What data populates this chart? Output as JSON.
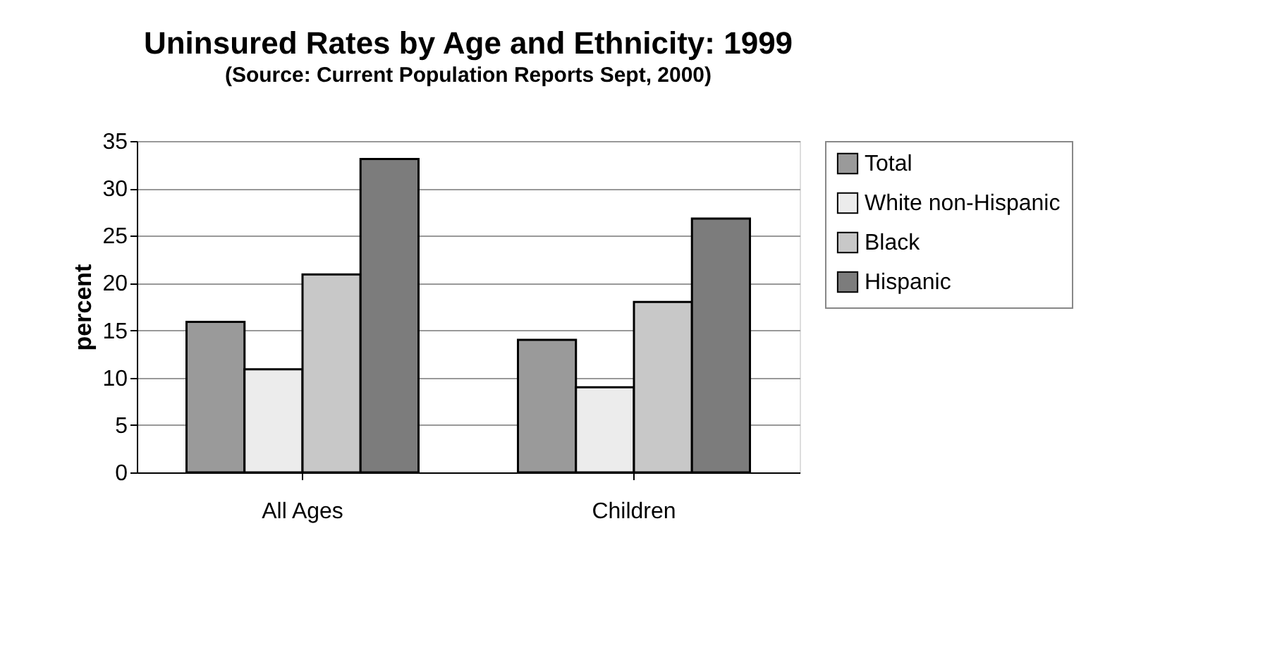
{
  "chart_data": {
    "type": "bar",
    "title": "Uninsured Rates by Age and Ethnicity: 1999",
    "subtitle": "(Source: Current Population Reports Sept, 2000)",
    "ylabel": "percent",
    "categories": [
      "All Ages",
      "Children"
    ],
    "series": [
      {
        "name": "Total",
        "color": "#9a9a9a",
        "values": [
          15.9,
          14.0
        ]
      },
      {
        "name": "White non-Hispanic",
        "color": "#ececec",
        "values": [
          10.9,
          9.0
        ]
      },
      {
        "name": "Black",
        "color": "#c8c8c8",
        "values": [
          20.9,
          18.0
        ]
      },
      {
        "name": "Hispanic",
        "color": "#7c7c7c",
        "values": [
          33.1,
          26.8
        ]
      }
    ],
    "ylim": [
      0,
      35
    ],
    "yticks": [
      0,
      5,
      10,
      15,
      20,
      25,
      30,
      35
    ],
    "grid": "y",
    "legend": "right"
  }
}
